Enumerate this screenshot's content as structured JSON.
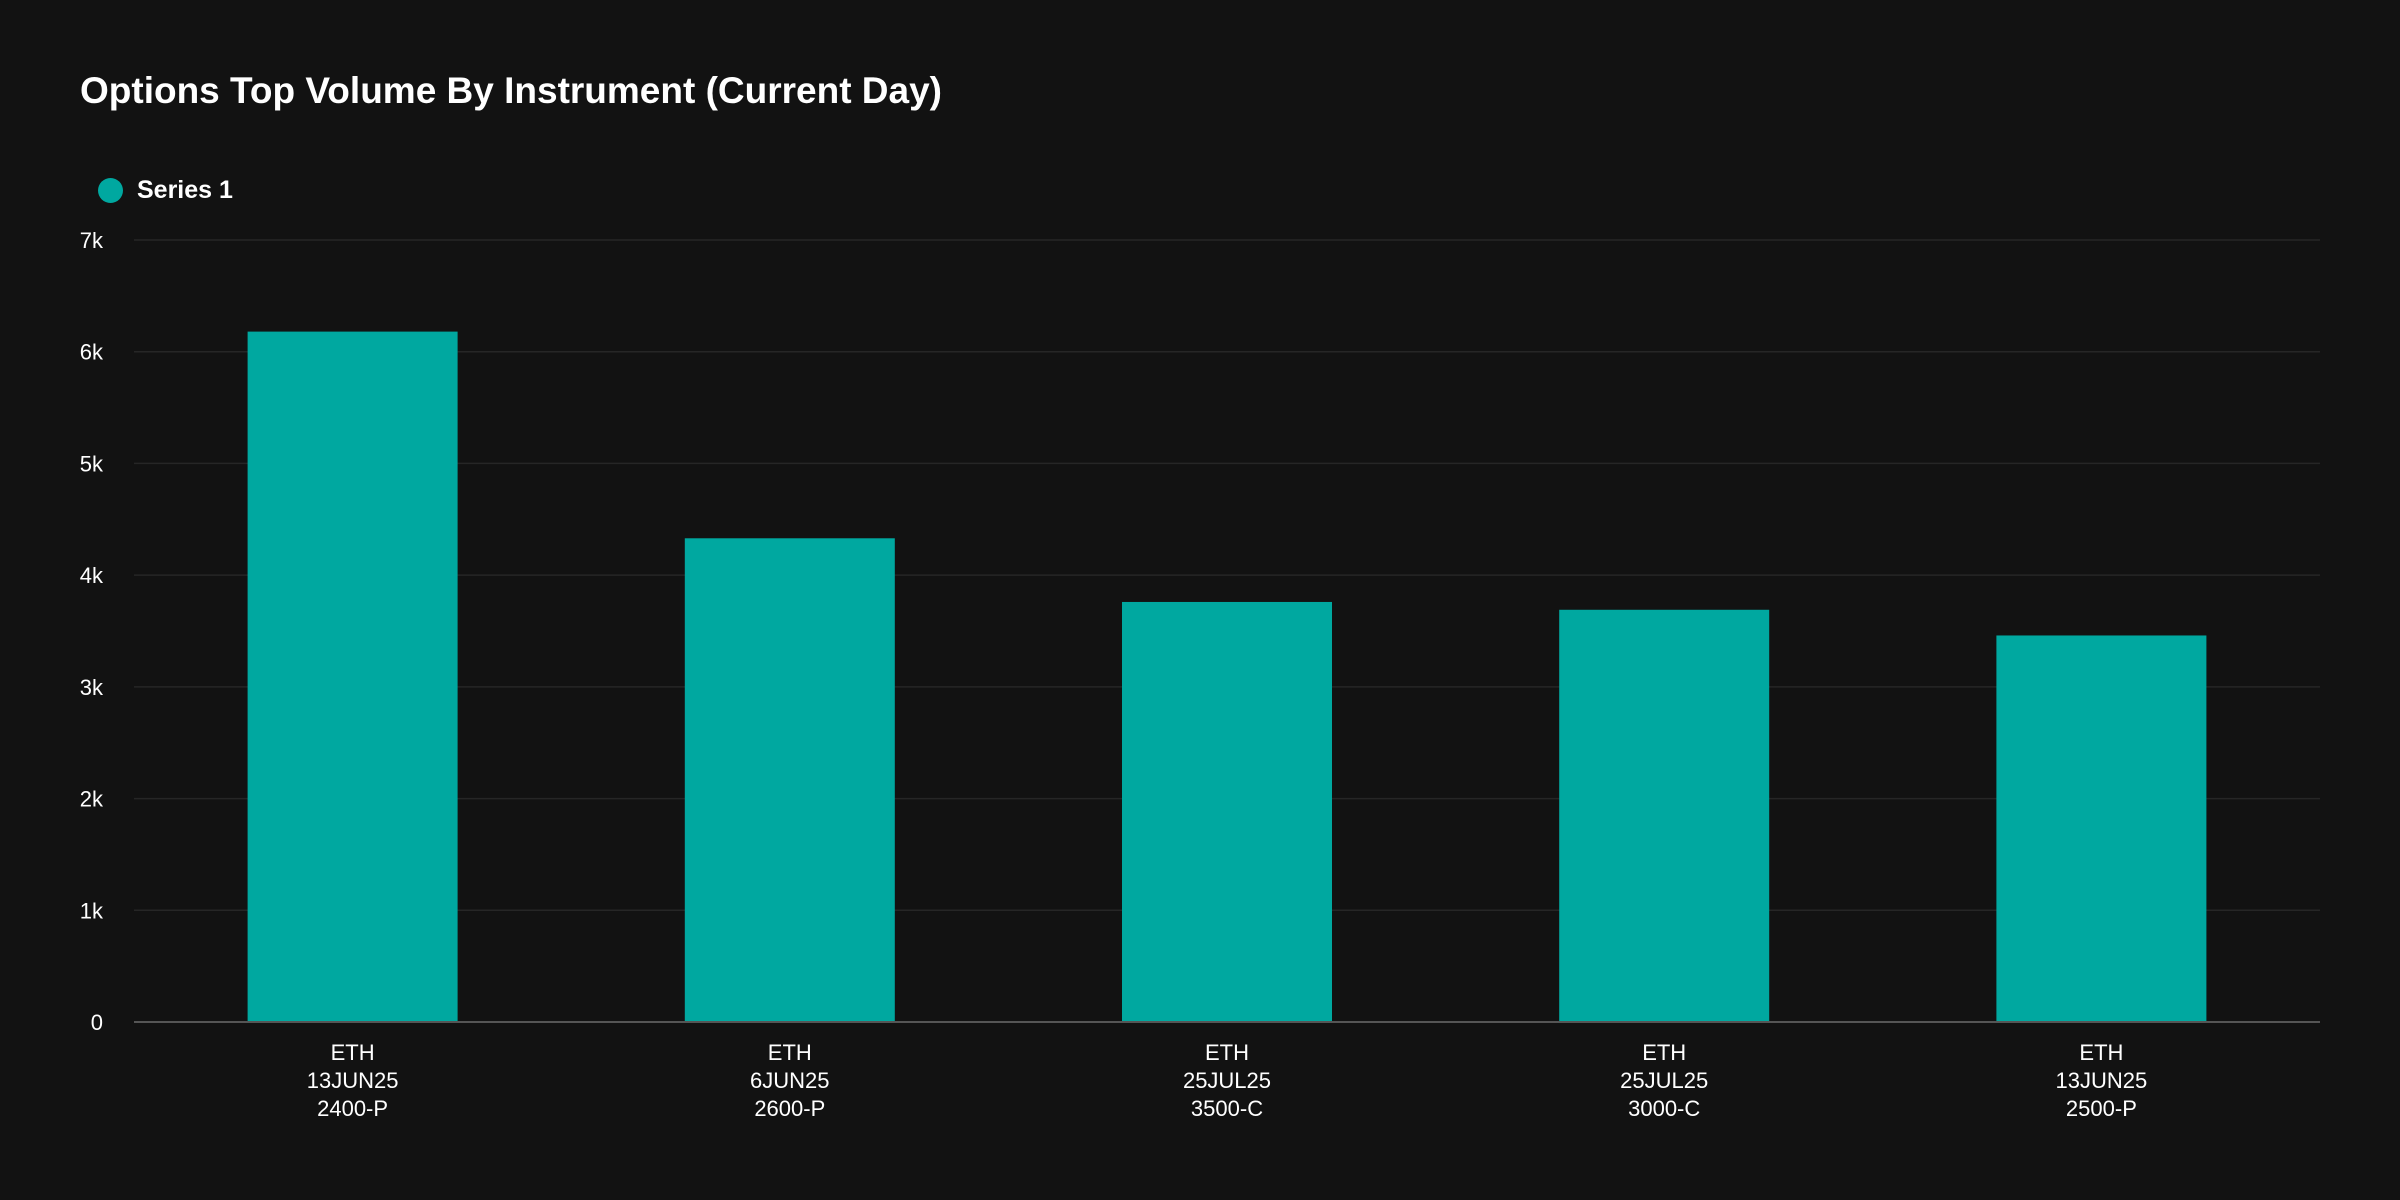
{
  "chart_data": {
    "type": "bar",
    "title": "Options Top Volume By Instrument (Current Day)",
    "categories": [
      [
        "ETH",
        "13JUN25",
        "2400-P"
      ],
      [
        "ETH",
        "6JUN25",
        "2600-P"
      ],
      [
        "ETH",
        "25JUL25",
        "3500-C"
      ],
      [
        "ETH",
        "25JUL25",
        "3000-C"
      ],
      [
        "ETH",
        "13JUN25",
        "2500-P"
      ]
    ],
    "series": [
      {
        "name": "Series 1",
        "color": "#00a8a0",
        "values": [
          6180,
          4330,
          3760,
          3690,
          3460
        ]
      }
    ],
    "ylim": [
      0,
      7000
    ],
    "yticks": [
      0,
      1000,
      2000,
      3000,
      4000,
      5000,
      6000,
      7000
    ],
    "ytick_labels": [
      "0",
      "1k",
      "2k",
      "3k",
      "4k",
      "5k",
      "6k",
      "7k"
    ],
    "grid": true,
    "legend": "top-left",
    "colors": {
      "background": "#121212",
      "gridline": "#262626",
      "axis": "#555555",
      "text": "#ffffff"
    }
  }
}
